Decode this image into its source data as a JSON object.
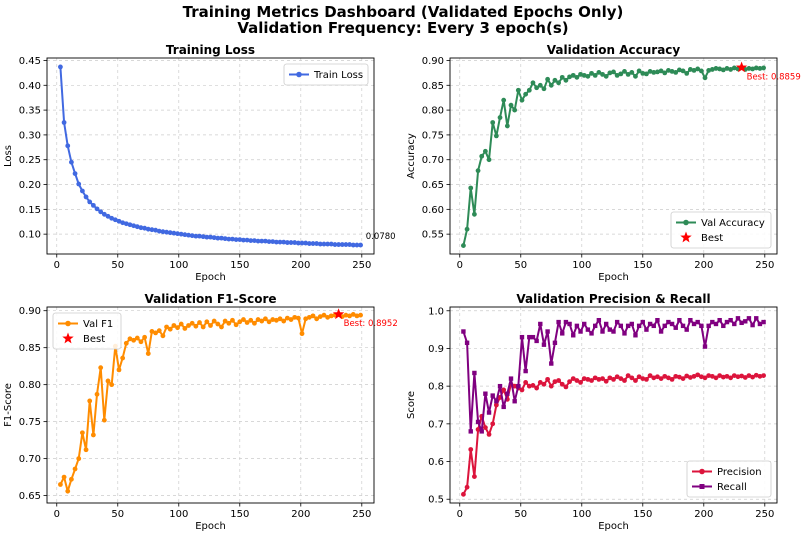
{
  "figure": {
    "title": "Training Metrics Dashboard (Validated Epochs Only)",
    "subtitle": "Validation Frequency: Every 3 epoch(s)"
  },
  "chart_data": [
    {
      "type": "line",
      "title": "Training Loss",
      "xlabel": "Epoch",
      "ylabel": "Loss",
      "xlim": [
        -8,
        260
      ],
      "ylim": [
        0.06,
        0.455
      ],
      "xticks": [
        0,
        50,
        100,
        150,
        200,
        250
      ],
      "yticks": [
        0.1,
        0.15,
        0.2,
        0.25,
        0.3,
        0.35,
        0.4,
        0.45
      ],
      "ytick_labels": [
        "0.10",
        "0.15",
        "0.20",
        "0.25",
        "0.30",
        "0.35",
        "0.40",
        "0.45"
      ],
      "grid": true,
      "legend": "top-right",
      "annotation": {
        "text": "0.0780",
        "x": 250,
        "y": 0.078
      },
      "series": [
        {
          "name": "Train Loss",
          "color": "#4169e1",
          "marker": "circle",
          "x": [
            3,
            6,
            9,
            12,
            15,
            18,
            21,
            24,
            27,
            30,
            33,
            36,
            39,
            42,
            45,
            48,
            51,
            54,
            57,
            60,
            63,
            66,
            69,
            72,
            75,
            78,
            81,
            84,
            87,
            90,
            93,
            96,
            99,
            102,
            105,
            108,
            111,
            114,
            117,
            120,
            123,
            126,
            129,
            132,
            135,
            138,
            141,
            144,
            147,
            150,
            153,
            156,
            159,
            162,
            165,
            168,
            171,
            174,
            177,
            180,
            183,
            186,
            189,
            192,
            195,
            198,
            201,
            204,
            207,
            210,
            213,
            216,
            219,
            222,
            225,
            228,
            231,
            234,
            237,
            240,
            243,
            246,
            249
          ],
          "y": [
            0.437,
            0.325,
            0.278,
            0.245,
            0.222,
            0.201,
            0.187,
            0.175,
            0.165,
            0.158,
            0.151,
            0.145,
            0.14,
            0.136,
            0.132,
            0.129,
            0.126,
            0.123,
            0.121,
            0.119,
            0.117,
            0.115,
            0.113,
            0.112,
            0.11,
            0.109,
            0.108,
            0.106,
            0.105,
            0.104,
            0.103,
            0.102,
            0.101,
            0.1,
            0.099,
            0.098,
            0.097,
            0.096,
            0.096,
            0.095,
            0.094,
            0.094,
            0.093,
            0.092,
            0.092,
            0.091,
            0.09,
            0.09,
            0.089,
            0.089,
            0.088,
            0.088,
            0.087,
            0.087,
            0.086,
            0.086,
            0.086,
            0.085,
            0.085,
            0.084,
            0.084,
            0.084,
            0.083,
            0.083,
            0.083,
            0.082,
            0.082,
            0.082,
            0.081,
            0.081,
            0.081,
            0.08,
            0.08,
            0.08,
            0.08,
            0.079,
            0.079,
            0.079,
            0.079,
            0.079,
            0.078,
            0.078,
            0.078
          ]
        }
      ]
    },
    {
      "type": "line",
      "title": "Validation Accuracy",
      "xlabel": "Epoch",
      "ylabel": "Accuracy",
      "xlim": [
        -8,
        260
      ],
      "ylim": [
        0.51,
        0.905
      ],
      "xticks": [
        0,
        50,
        100,
        150,
        200,
        250
      ],
      "yticks": [
        0.55,
        0.6,
        0.65,
        0.7,
        0.75,
        0.8,
        0.85,
        0.9
      ],
      "ytick_labels": [
        "0.55",
        "0.60",
        "0.65",
        "0.70",
        "0.75",
        "0.80",
        "0.85",
        "0.90"
      ],
      "grid": true,
      "legend": "bottom-right",
      "annotation": {
        "text": "Best: 0.8859",
        "x": 231,
        "y": 0.8859
      },
      "best": {
        "label": "Best",
        "x": 231,
        "y": 0.8859,
        "color": "#ff0000"
      },
      "series": [
        {
          "name": "Val Accuracy",
          "color": "#2e8b57",
          "marker": "circle",
          "x": [
            3,
            6,
            9,
            12,
            15,
            18,
            21,
            24,
            27,
            30,
            33,
            36,
            39,
            42,
            45,
            48,
            51,
            54,
            57,
            60,
            63,
            66,
            69,
            72,
            75,
            78,
            81,
            84,
            87,
            90,
            93,
            96,
            99,
            102,
            105,
            108,
            111,
            114,
            117,
            120,
            123,
            126,
            129,
            132,
            135,
            138,
            141,
            144,
            147,
            150,
            153,
            156,
            159,
            162,
            165,
            168,
            171,
            174,
            177,
            180,
            183,
            186,
            189,
            192,
            195,
            198,
            201,
            204,
            207,
            210,
            213,
            216,
            219,
            222,
            225,
            228,
            231,
            234,
            237,
            240,
            243,
            246,
            249
          ],
          "y": [
            0.527,
            0.56,
            0.643,
            0.59,
            0.678,
            0.707,
            0.717,
            0.7,
            0.775,
            0.748,
            0.785,
            0.82,
            0.768,
            0.81,
            0.8,
            0.84,
            0.82,
            0.832,
            0.84,
            0.855,
            0.845,
            0.85,
            0.843,
            0.862,
            0.85,
            0.86,
            0.855,
            0.866,
            0.86,
            0.867,
            0.87,
            0.866,
            0.872,
            0.87,
            0.868,
            0.874,
            0.87,
            0.876,
            0.872,
            0.868,
            0.875,
            0.877,
            0.87,
            0.873,
            0.878,
            0.872,
            0.876,
            0.868,
            0.879,
            0.874,
            0.873,
            0.878,
            0.876,
            0.877,
            0.879,
            0.875,
            0.88,
            0.878,
            0.876,
            0.881,
            0.879,
            0.874,
            0.882,
            0.88,
            0.883,
            0.879,
            0.865,
            0.88,
            0.882,
            0.884,
            0.883,
            0.881,
            0.884,
            0.882,
            0.885,
            0.883,
            0.8859,
            0.882,
            0.884,
            0.883,
            0.885,
            0.884,
            0.885
          ]
        }
      ]
    },
    {
      "type": "line",
      "title": "Validation F1-Score",
      "xlabel": "Epoch",
      "ylabel": "F1-Score",
      "xlim": [
        -8,
        260
      ],
      "ylim": [
        0.64,
        0.905
      ],
      "xticks": [
        0,
        50,
        100,
        150,
        200,
        250
      ],
      "yticks": [
        0.65,
        0.7,
        0.75,
        0.8,
        0.85,
        0.9
      ],
      "ytick_labels": [
        "0.65",
        "0.70",
        "0.75",
        "0.80",
        "0.85",
        "0.90"
      ],
      "grid": true,
      "legend": "top-left",
      "annotation": {
        "text": "Best: 0.8952",
        "x": 231,
        "y": 0.8952
      },
      "best": {
        "label": "Best",
        "x": 231,
        "y": 0.8952,
        "color": "#ff0000"
      },
      "series": [
        {
          "name": "Val F1",
          "color": "#ff8c00",
          "marker": "circle",
          "x": [
            3,
            6,
            9,
            12,
            15,
            18,
            21,
            24,
            27,
            30,
            33,
            36,
            39,
            42,
            45,
            48,
            51,
            54,
            57,
            60,
            63,
            66,
            69,
            72,
            75,
            78,
            81,
            84,
            87,
            90,
            93,
            96,
            99,
            102,
            105,
            108,
            111,
            114,
            117,
            120,
            123,
            126,
            129,
            132,
            135,
            138,
            141,
            144,
            147,
            150,
            153,
            156,
            159,
            162,
            165,
            168,
            171,
            174,
            177,
            180,
            183,
            186,
            189,
            192,
            195,
            198,
            201,
            204,
            207,
            210,
            213,
            216,
            219,
            222,
            225,
            228,
            231,
            234,
            237,
            240,
            243,
            246,
            249
          ],
          "y": [
            0.665,
            0.675,
            0.656,
            0.672,
            0.686,
            0.7,
            0.735,
            0.712,
            0.778,
            0.732,
            0.787,
            0.823,
            0.752,
            0.805,
            0.8,
            0.852,
            0.82,
            0.836,
            0.856,
            0.862,
            0.86,
            0.863,
            0.858,
            0.864,
            0.842,
            0.872,
            0.87,
            0.873,
            0.866,
            0.878,
            0.875,
            0.88,
            0.877,
            0.882,
            0.876,
            0.88,
            0.883,
            0.879,
            0.884,
            0.878,
            0.885,
            0.88,
            0.886,
            0.882,
            0.878,
            0.886,
            0.883,
            0.887,
            0.881,
            0.885,
            0.888,
            0.884,
            0.887,
            0.883,
            0.888,
            0.886,
            0.889,
            0.885,
            0.888,
            0.887,
            0.889,
            0.886,
            0.89,
            0.888,
            0.891,
            0.89,
            0.869,
            0.889,
            0.891,
            0.893,
            0.889,
            0.892,
            0.894,
            0.891,
            0.893,
            0.894,
            0.8952,
            0.892,
            0.894,
            0.893,
            0.895,
            0.893,
            0.894
          ]
        }
      ]
    },
    {
      "type": "line",
      "title": "Validation Precision & Recall",
      "xlabel": "Epoch",
      "ylabel": "Score",
      "xlim": [
        -8,
        260
      ],
      "ylim": [
        0.49,
        1.01
      ],
      "xticks": [
        0,
        50,
        100,
        150,
        200,
        250
      ],
      "yticks": [
        0.5,
        0.6,
        0.7,
        0.8,
        0.9,
        1.0
      ],
      "ytick_labels": [
        "0.5",
        "0.6",
        "0.7",
        "0.8",
        "0.9",
        "1.0"
      ],
      "grid": true,
      "legend": "bottom-right",
      "series": [
        {
          "name": "Precision",
          "color": "#dc143c",
          "marker": "circle",
          "x": [
            3,
            6,
            9,
            12,
            15,
            18,
            21,
            24,
            27,
            30,
            33,
            36,
            39,
            42,
            45,
            48,
            51,
            54,
            57,
            60,
            63,
            66,
            69,
            72,
            75,
            78,
            81,
            84,
            87,
            90,
            93,
            96,
            99,
            102,
            105,
            108,
            111,
            114,
            117,
            120,
            123,
            126,
            129,
            132,
            135,
            138,
            141,
            144,
            147,
            150,
            153,
            156,
            159,
            162,
            165,
            168,
            171,
            174,
            177,
            180,
            183,
            186,
            189,
            192,
            195,
            198,
            201,
            204,
            207,
            210,
            213,
            216,
            219,
            222,
            225,
            228,
            231,
            234,
            237,
            240,
            243,
            246,
            249
          ],
          "y": [
            0.513,
            0.532,
            0.632,
            0.56,
            0.685,
            0.72,
            0.69,
            0.672,
            0.7,
            0.75,
            0.77,
            0.79,
            0.765,
            0.805,
            0.8,
            0.795,
            0.79,
            0.81,
            0.8,
            0.802,
            0.795,
            0.81,
            0.805,
            0.818,
            0.8,
            0.812,
            0.815,
            0.805,
            0.798,
            0.812,
            0.82,
            0.815,
            0.81,
            0.82,
            0.818,
            0.815,
            0.822,
            0.818,
            0.82,
            0.813,
            0.822,
            0.818,
            0.825,
            0.82,
            0.815,
            0.828,
            0.822,
            0.815,
            0.825,
            0.82,
            0.818,
            0.828,
            0.822,
            0.825,
            0.82,
            0.826,
            0.822,
            0.818,
            0.826,
            0.824,
            0.82,
            0.827,
            0.823,
            0.826,
            0.83,
            0.825,
            0.822,
            0.828,
            0.826,
            0.822,
            0.828,
            0.824,
            0.826,
            0.822,
            0.828,
            0.825,
            0.827,
            0.823,
            0.828,
            0.824,
            0.829,
            0.826,
            0.828
          ]
        },
        {
          "name": "Recall",
          "color": "#800080",
          "marker": "square",
          "x": [
            3,
            6,
            9,
            12,
            15,
            18,
            21,
            24,
            27,
            30,
            33,
            36,
            39,
            42,
            45,
            48,
            51,
            54,
            57,
            60,
            63,
            66,
            69,
            72,
            75,
            78,
            81,
            84,
            87,
            90,
            93,
            96,
            99,
            102,
            105,
            108,
            111,
            114,
            117,
            120,
            123,
            126,
            129,
            132,
            135,
            138,
            141,
            144,
            147,
            150,
            153,
            156,
            159,
            162,
            165,
            168,
            171,
            174,
            177,
            180,
            183,
            186,
            189,
            192,
            195,
            198,
            201,
            204,
            207,
            210,
            213,
            216,
            219,
            222,
            225,
            228,
            231,
            234,
            237,
            240,
            243,
            246,
            249
          ],
          "y": [
            0.945,
            0.915,
            0.68,
            0.835,
            0.705,
            0.68,
            0.78,
            0.73,
            0.775,
            0.76,
            0.8,
            0.745,
            0.78,
            0.82,
            0.76,
            0.8,
            0.93,
            0.84,
            0.93,
            0.93,
            0.92,
            0.965,
            0.91,
            0.945,
            0.86,
            0.915,
            0.97,
            0.94,
            0.97,
            0.965,
            0.935,
            0.96,
            0.945,
            0.965,
            0.95,
            0.94,
            0.96,
            0.975,
            0.945,
            0.965,
            0.95,
            0.945,
            0.97,
            0.96,
            0.94,
            0.96,
            0.965,
            0.935,
            0.96,
            0.97,
            0.95,
            0.965,
            0.96,
            0.975,
            0.945,
            0.96,
            0.97,
            0.965,
            0.955,
            0.975,
            0.96,
            0.95,
            0.975,
            0.965,
            0.97,
            0.96,
            0.905,
            0.96,
            0.97,
            0.965,
            0.975,
            0.96,
            0.97,
            0.975,
            0.965,
            0.98,
            0.968,
            0.972,
            0.98,
            0.962,
            0.98,
            0.965,
            0.97
          ]
        }
      ]
    }
  ]
}
